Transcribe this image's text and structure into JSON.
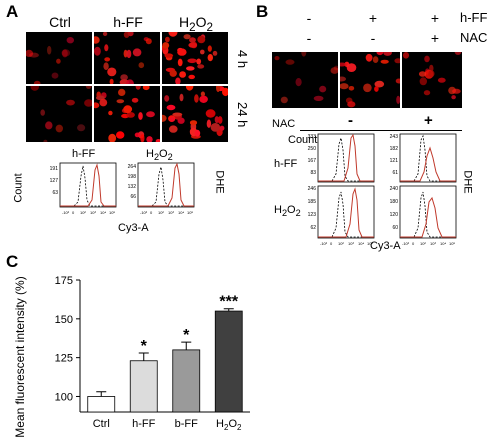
{
  "panel_a": {
    "letter": "A",
    "columns": [
      "Ctrl",
      "h-FF",
      "H2O2"
    ],
    "rows": [
      "4 h",
      "24 h"
    ],
    "density": [
      [
        1,
        3,
        5
      ],
      [
        1,
        4,
        5
      ]
    ],
    "histograms": [
      {
        "title": "h-FF",
        "ylabel": "Count",
        "yticks": [
          "191",
          "127",
          "63"
        ]
      },
      {
        "title": "H2O2",
        "ylabel": "",
        "yticks": [
          "264",
          "198",
          "132",
          "66"
        ]
      }
    ],
    "side_label": "DHE",
    "xaxis_label": "Cy3-A",
    "xticks": [
      "-10²",
      "0",
      "10²",
      "10³",
      "10⁴",
      "10⁵"
    ]
  },
  "panel_b": {
    "letter": "B",
    "hff_row": [
      "-",
      "+",
      "+"
    ],
    "nac_row": [
      "-",
      "-",
      "+"
    ],
    "hff_label": "h-FF",
    "nac_label": "NAC",
    "density": [
      1,
      3,
      2
    ],
    "nac_header": "NAC",
    "nac_values": [
      "-",
      "+"
    ],
    "row_labels": [
      "h-FF",
      "H2O2"
    ],
    "ylabel": "Count",
    "side_label": "DHE",
    "xaxis_label": "Cy3-A",
    "yticks": [
      [
        "333",
        "250",
        "167",
        "83"
      ],
      [
        "243",
        "182",
        "121",
        "61"
      ],
      [
        "246",
        "185",
        "123",
        "62"
      ],
      [
        "240",
        "180",
        "120",
        "60"
      ]
    ],
    "xticks": [
      "-10²",
      "0",
      "10²",
      "10³",
      "10⁴",
      "10⁵"
    ]
  },
  "panel_c": {
    "letter": "C",
    "chart_data": {
      "type": "bar",
      "categories": [
        "Ctrl",
        "h-FF",
        "b-FF",
        "H2O2"
      ],
      "values": [
        100,
        123,
        130,
        155
      ],
      "errors": [
        3,
        5,
        5,
        1.5
      ],
      "significance": [
        "",
        "*",
        "*",
        "***"
      ],
      "ylabel": "Mean fluorescent intensity (%)",
      "ylim": [
        90,
        175
      ],
      "yticks": [
        100,
        125,
        150,
        175
      ],
      "colors": [
        "#ffffff",
        "#dcdcdc",
        "#9a9a9a",
        "#404040"
      ]
    }
  }
}
